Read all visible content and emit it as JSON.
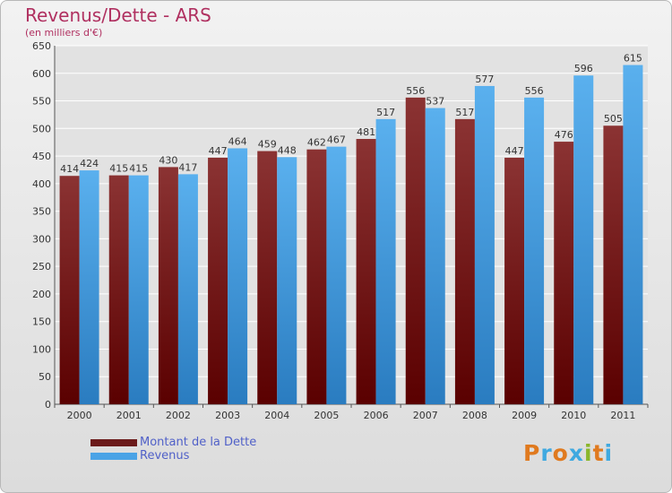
{
  "header": {
    "title": "Revenus/Dette - ARS",
    "subtitle": "(en milliers d'€)"
  },
  "legend": {
    "items": [
      {
        "label": "Montant de la Dette",
        "color": "#6b1a1a"
      },
      {
        "label": "Revenus",
        "color": "#4aa3e6"
      }
    ]
  },
  "logo": {
    "text": "Proxiti",
    "colors": [
      "#e07a1f",
      "#3fa9e0",
      "#e07a1f",
      "#3fa9e0",
      "#8ab62b",
      "#e07a1f",
      "#3fa9e0"
    ]
  },
  "colors": {
    "dette_top": "#8b3333",
    "dette_bottom": "#5a0000",
    "revenus_top": "#5ab0ee",
    "revenus_bottom": "#2a7cc0",
    "grid": "#ffffff",
    "text": "#333333"
  },
  "chart_data": {
    "type": "bar",
    "title": "Revenus/Dette - ARS",
    "subtitle": "(en milliers d'€)",
    "categories": [
      "2000",
      "2001",
      "2002",
      "2003",
      "2004",
      "2005",
      "2006",
      "2007",
      "2008",
      "2009",
      "2010",
      "2011"
    ],
    "series": [
      {
        "name": "Montant de la Dette",
        "values": [
          414,
          415,
          430,
          447,
          459,
          462,
          481,
          556,
          517,
          447,
          476,
          505
        ]
      },
      {
        "name": "Revenus",
        "values": [
          424,
          415,
          417,
          464,
          448,
          467,
          517,
          537,
          577,
          556,
          596,
          615
        ]
      }
    ],
    "ylim": [
      0,
      650
    ],
    "yticks": [
      0,
      50,
      100,
      150,
      200,
      250,
      300,
      350,
      400,
      450,
      500,
      550,
      600,
      650
    ],
    "grid": true,
    "legend_position": "bottom-left"
  }
}
